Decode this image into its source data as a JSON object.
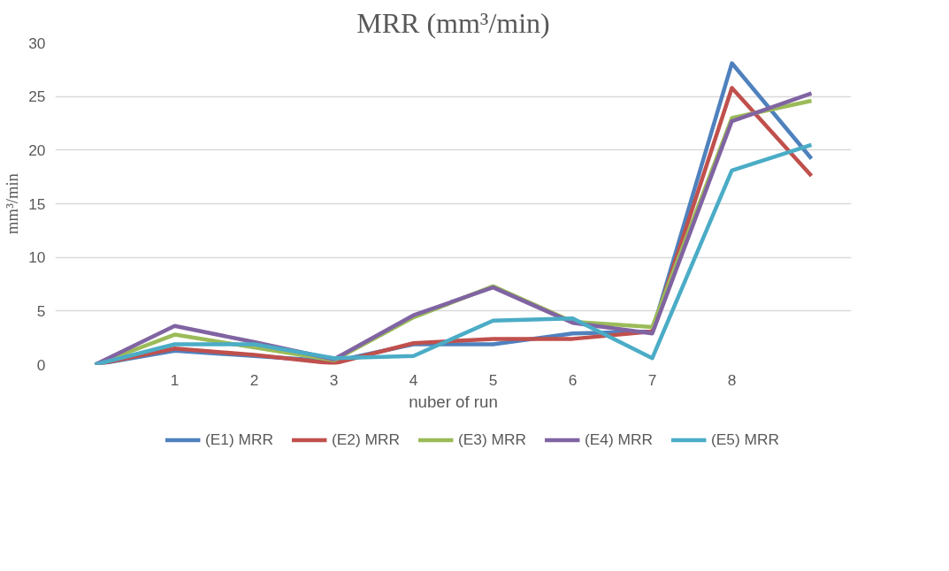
{
  "chart_data": {
    "type": "line",
    "title": "MRR (mm³/min)",
    "xlabel": "nuber of run",
    "ylabel": "mm³/min",
    "categories": [
      null,
      "1",
      "2",
      "3",
      "4",
      "5",
      "6",
      "7",
      "8",
      null
    ],
    "series": [
      {
        "name": "(E1) MRR",
        "color": "#4f81bd",
        "values": [
          0,
          1.3,
          0.8,
          0.3,
          1.9,
          1.9,
          2.9,
          3.1,
          28.1,
          19.2
        ]
      },
      {
        "name": "(E2) MRR",
        "color": "#c0504d",
        "values": [
          0,
          1.5,
          0.9,
          0.1,
          2.0,
          2.4,
          2.4,
          3.1,
          25.8,
          17.6
        ]
      },
      {
        "name": "(E3) MRR",
        "color": "#9bbb59",
        "values": [
          0,
          2.8,
          1.6,
          0.4,
          4.4,
          7.3,
          4.0,
          3.5,
          23.0,
          24.6
        ]
      },
      {
        "name": "(E4) MRR",
        "color": "#8064a2",
        "values": [
          0,
          3.6,
          2.1,
          0.5,
          4.6,
          7.2,
          3.9,
          2.9,
          22.7,
          25.3
        ]
      },
      {
        "name": "(E5) MRR",
        "color": "#4bacc6",
        "values": [
          0,
          1.9,
          1.9,
          0.6,
          0.8,
          4.1,
          4.3,
          0.6,
          18.1,
          20.5
        ]
      }
    ],
    "ylim": [
      0,
      30
    ],
    "yticks": [
      0,
      5,
      10,
      15,
      20,
      25,
      30
    ],
    "grid": "y",
    "legend": "bottom",
    "marker": "none",
    "line_style": "solid"
  }
}
